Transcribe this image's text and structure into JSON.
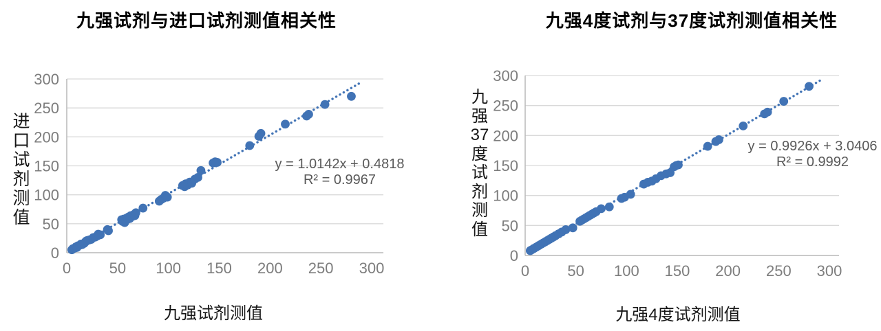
{
  "colors": {
    "dot": "#4173b5",
    "trend": "#4173b5",
    "grid": "#d9d9d9",
    "axis": "#b9b9b9",
    "tick_text": "#7d7d7d",
    "equation_text": "#595959",
    "title_text": "#000000"
  },
  "chart_data": [
    {
      "type": "scatter",
      "title": "九强试剂与进口试剂测值相关性",
      "xlabel": "九强试剂测值",
      "ylabel": "进口试剂测值",
      "ylabel_stacked": [
        "进",
        "口",
        "试",
        "剂",
        "测",
        "值"
      ],
      "equation": "y = 1.0142x + 0.4818",
      "r2": "R² = 0.9967",
      "xlim": [
        0,
        300
      ],
      "ylim": [
        0,
        300
      ],
      "x_ticks": [
        0,
        50,
        100,
        150,
        200,
        250,
        300
      ],
      "y_ticks": [
        0,
        50,
        100,
        150,
        200,
        250,
        300
      ],
      "grid": "horizontal",
      "legend": "none",
      "trend": {
        "slope": 1.0142,
        "intercept": 0.4818,
        "x_start": 3,
        "x_end": 290,
        "style": "dotted"
      },
      "points": [
        [
          5,
          5
        ],
        [
          6,
          7
        ],
        [
          8,
          8
        ],
        [
          9,
          10
        ],
        [
          10,
          9
        ],
        [
          11,
          12
        ],
        [
          13,
          13
        ],
        [
          14,
          15
        ],
        [
          15,
          14
        ],
        [
          17,
          16
        ],
        [
          18,
          18
        ],
        [
          19,
          20
        ],
        [
          20,
          21
        ],
        [
          22,
          22
        ],
        [
          24,
          23
        ],
        [
          26,
          26
        ],
        [
          28,
          27
        ],
        [
          30,
          29
        ],
        [
          31,
          32
        ],
        [
          33,
          31
        ],
        [
          40,
          40
        ],
        [
          41,
          38
        ],
        [
          54,
          57
        ],
        [
          55,
          54
        ],
        [
          56,
          58
        ],
        [
          57,
          52
        ],
        [
          58,
          56
        ],
        [
          59,
          60
        ],
        [
          60,
          58
        ],
        [
          61,
          62
        ],
        [
          62,
          59
        ],
        [
          63,
          64
        ],
        [
          65,
          63
        ],
        [
          66,
          66
        ],
        [
          67,
          64
        ],
        [
          68,
          69
        ],
        [
          75,
          77
        ],
        [
          91,
          89
        ],
        [
          93,
          92
        ],
        [
          95,
          94
        ],
        [
          97,
          99
        ],
        [
          99,
          96
        ],
        [
          114,
          116
        ],
        [
          116,
          114
        ],
        [
          117,
          119
        ],
        [
          119,
          117
        ],
        [
          121,
          122
        ],
        [
          123,
          120
        ],
        [
          126,
          127
        ],
        [
          129,
          130
        ],
        [
          132,
          142
        ],
        [
          144,
          155
        ],
        [
          146,
          157
        ],
        [
          148,
          156
        ],
        [
          180,
          185
        ],
        [
          189,
          201
        ],
        [
          191,
          206
        ],
        [
          215,
          222
        ],
        [
          236,
          236
        ],
        [
          238,
          239
        ],
        [
          254,
          256
        ],
        [
          280,
          270
        ]
      ]
    },
    {
      "type": "scatter",
      "title": "九强4度试剂与37度试剂测值相关性",
      "xlabel": "九强4度试剂测值",
      "ylabel": "九强37度试剂测值",
      "ylabel_stacked": [
        "九",
        "强",
        "37",
        "度",
        "试",
        "剂",
        "测",
        "值"
      ],
      "equation": "y = 0.9926x + 3.0406",
      "r2": "R² = 0.9992",
      "xlim": [
        0,
        300
      ],
      "ylim": [
        0,
        300
      ],
      "x_ticks": [
        0,
        50,
        100,
        150,
        200,
        250,
        300
      ],
      "y_ticks": [
        0,
        50,
        100,
        150,
        200,
        250,
        300
      ],
      "grid": "horizontal",
      "legend": "none",
      "trend": {
        "slope": 0.9926,
        "intercept": 3.0406,
        "x_start": 3,
        "x_end": 291,
        "style": "dotted"
      },
      "points": [
        [
          5,
          8
        ],
        [
          6,
          9
        ],
        [
          8,
          11
        ],
        [
          9,
          12
        ],
        [
          11,
          14
        ],
        [
          13,
          16
        ],
        [
          14,
          17
        ],
        [
          16,
          19
        ],
        [
          18,
          21
        ],
        [
          20,
          23
        ],
        [
          22,
          25
        ],
        [
          24,
          27
        ],
        [
          26,
          29
        ],
        [
          28,
          31
        ],
        [
          30,
          33
        ],
        [
          33,
          36
        ],
        [
          36,
          39
        ],
        [
          40,
          43
        ],
        [
          47,
          46
        ],
        [
          54,
          57
        ],
        [
          56,
          59
        ],
        [
          58,
          61
        ],
        [
          60,
          63
        ],
        [
          62,
          65
        ],
        [
          64,
          67
        ],
        [
          66,
          69
        ],
        [
          68,
          71
        ],
        [
          70,
          73
        ],
        [
          75,
          78
        ],
        [
          83,
          81
        ],
        [
          95,
          95
        ],
        [
          98,
          97
        ],
        [
          104,
          102
        ],
        [
          117,
          119
        ],
        [
          121,
          122
        ],
        [
          125,
          124
        ],
        [
          129,
          128
        ],
        [
          134,
          133
        ],
        [
          139,
          136
        ],
        [
          143,
          138
        ],
        [
          147,
          148
        ],
        [
          149,
          150
        ],
        [
          151,
          151
        ],
        [
          180,
          182
        ],
        [
          188,
          190
        ],
        [
          191,
          193
        ],
        [
          215,
          216
        ],
        [
          236,
          236
        ],
        [
          239,
          239
        ],
        [
          255,
          257
        ],
        [
          280,
          282
        ]
      ]
    }
  ]
}
